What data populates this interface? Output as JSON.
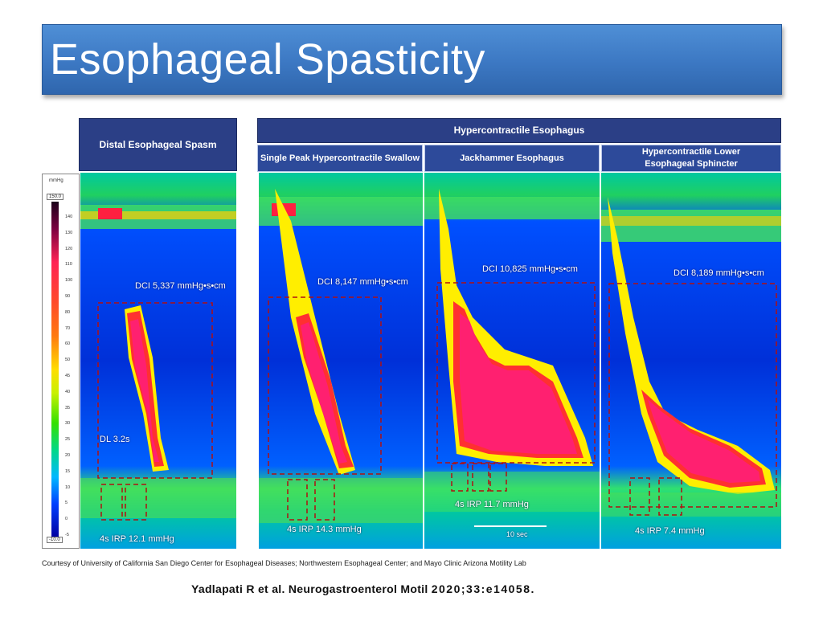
{
  "slide": {
    "title": "Esophageal Spasticity"
  },
  "figure": {
    "headers": {
      "distal": "Distal Esophageal Spasm",
      "hypercontractile": "Hypercontractile Esophagus",
      "single_peak": "Single Peak Hypercontractile Swallow",
      "jackhammer": "Jackhammer Esophagus",
      "hcles": "Hypercontractile Lower Esophageal Sphincter"
    },
    "scale": {
      "unit": "mmHg",
      "max": "150.0",
      "min": "-10.0",
      "ticks": [
        "140",
        "130",
        "120",
        "110",
        "100",
        "90",
        "80",
        "70",
        "60",
        "50",
        "45",
        "40",
        "35",
        "30",
        "25",
        "20",
        "15",
        "10",
        "5",
        "0",
        "-5"
      ]
    },
    "panels": {
      "distal": {
        "dci": "DCI 5,337 mmHg•s•cm",
        "dl": "DL 3.2s",
        "irp": "4s IRP 12.1 mmHg"
      },
      "single_peak": {
        "dci": "DCI 8,147 mmHg•s•cm",
        "irp": "4s IRP 14.3 mmHg"
      },
      "jackhammer": {
        "dci": "DCI 10,825 mmHg•s•cm",
        "irp": "4s IRP 11.7 mmHg",
        "timebar": "10 sec"
      },
      "hcles": {
        "dci": "DCI 8,189 mmHg•s•cm",
        "irp": "4s IRP 7.4 mmHg"
      }
    },
    "credit": "Courtesy of University of California San Diego Center for Esophageal Diseases; Northwestern Esophageal Center; and Mayo Clinic Arizona Motility Lab"
  },
  "citation": {
    "authors": "Yadlapati R et al.",
    "journal": "Neurogastroenterol Motil",
    "ref": "2020;33:e14058."
  }
}
